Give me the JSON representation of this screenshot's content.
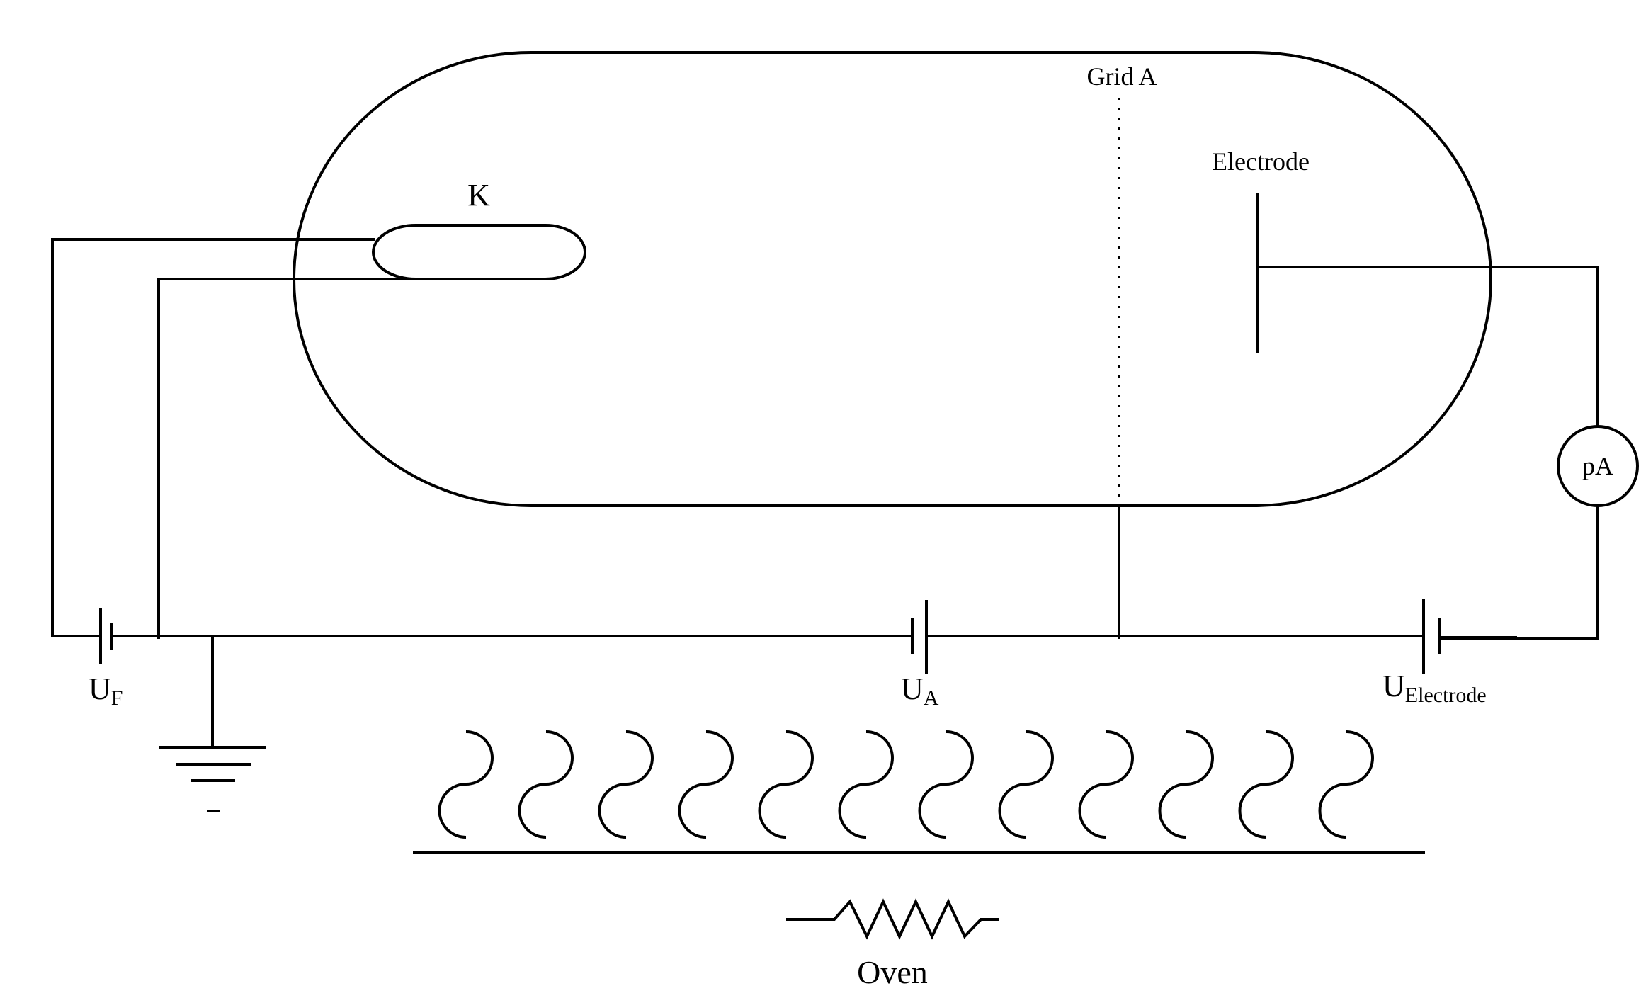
{
  "diagram": {
    "labels": {
      "cathode": "K",
      "grid": "Grid A",
      "electrode": "Electrode",
      "ammeter": "pA",
      "uf_main": "U",
      "uf_sub": "F",
      "ua_main": "U",
      "ua_sub": "A",
      "ue_main": "U",
      "ue_sub": "Electrode",
      "oven": "Oven"
    },
    "colors": {
      "line": "#000000",
      "background": "#ffffff"
    },
    "heater_coil_count": 12
  }
}
